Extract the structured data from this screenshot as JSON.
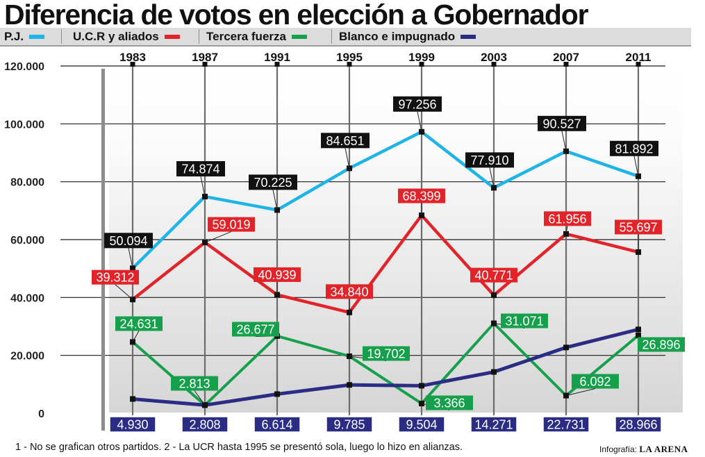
{
  "title": "Diferencia de votos en elección a Gobernador",
  "legend": [
    {
      "label": "P.J.",
      "color": "#1eb4e8"
    },
    {
      "label": "U.C.R y aliados",
      "color": "#e3232a"
    },
    {
      "label": "Tercera fuerza",
      "color": "#17a04c"
    },
    {
      "label": "Blanco e impugnado",
      "color": "#2b2c84"
    }
  ],
  "footnote": "1 - No se grafican otros partidos.  2 - La UCR hasta 1995 se presentó sola, luego lo hizo en alianzas.",
  "credit_prefix": "Infografía: ",
  "credit_brand": "LA ARENA",
  "chart_data": {
    "type": "line",
    "title": "Diferencia de votos en elección a Gobernador",
    "x": [
      "1983",
      "1987",
      "1991",
      "1995",
      "1999",
      "2003",
      "2007",
      "2011"
    ],
    "ylim": [
      0,
      120000
    ],
    "yticks": [
      0,
      20000,
      40000,
      60000,
      80000,
      100000,
      120000
    ],
    "ytick_labels": [
      "0",
      "20.000",
      "40.000",
      "60.000",
      "80.000",
      "100.000",
      "120.000"
    ],
    "grid": true,
    "legend_position": "top",
    "series": [
      {
        "name": "P.J.",
        "color": "#1eb4e8",
        "values": [
          50094,
          74874,
          70225,
          84651,
          97256,
          77910,
          90527,
          81892
        ],
        "labels": [
          "50.094",
          "74.874",
          "70.225",
          "84.651",
          "97.256",
          "77.910",
          "90.527",
          "81.892"
        ]
      },
      {
        "name": "U.C.R y aliados",
        "color": "#e3232a",
        "values": [
          39312,
          59019,
          40939,
          34840,
          68399,
          40771,
          61956,
          55697
        ],
        "labels": [
          "39.312",
          "59.019",
          "40.939",
          "34.840",
          "68.399",
          "40.771",
          "61.956",
          "55.697"
        ]
      },
      {
        "name": "Tercera fuerza",
        "color": "#17a04c",
        "values": [
          24631,
          2813,
          26677,
          19702,
          3366,
          31071,
          6092,
          26896
        ],
        "labels": [
          "24.631",
          "2.813",
          "26.677",
          "19.702",
          "3.366",
          "31.071",
          "6.092",
          "26.896"
        ]
      },
      {
        "name": "Blanco e impugnado",
        "color": "#2b2c84",
        "values": [
          4930,
          2808,
          6614,
          9785,
          9504,
          14271,
          22731,
          28966
        ],
        "labels": [
          "4.930",
          "2.808",
          "6.614",
          "9.785",
          "9.504",
          "14.271",
          "22.731",
          "28.966"
        ]
      }
    ]
  }
}
